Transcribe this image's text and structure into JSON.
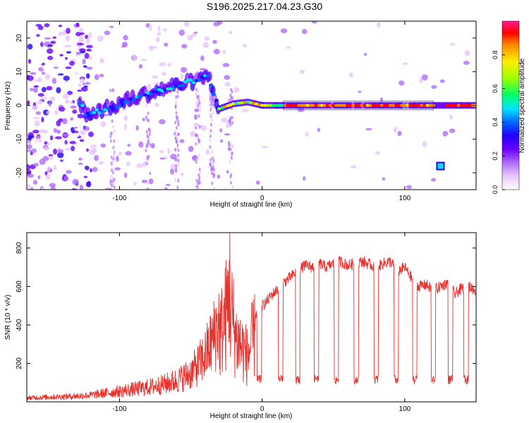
{
  "title": "S196.2025.217.04.23.G30",
  "colors": {
    "snr_line": "#e8302c",
    "axis": "#000000",
    "colormap": [
      "#ffffff",
      "#e7c6ff",
      "#b06bff",
      "#6a00ff",
      "#2200ff",
      "#0066ff",
      "#00e5ff",
      "#00ff6a",
      "#9cff00",
      "#ffee00",
      "#ff8800",
      "#ff0000",
      "#ff1a8c"
    ]
  },
  "chart_data": [
    {
      "type": "heatmap",
      "title": "S196.2025.217.04.23.G30",
      "xlabel": "Height of straight line (km)",
      "ylabel": "Frequency (Hz)",
      "xlim": [
        -165,
        150
      ],
      "ylim": [
        -25,
        25
      ],
      "x_ticks": [
        -100,
        0,
        100
      ],
      "y_ticks": [
        -20,
        -10,
        0,
        10,
        20
      ],
      "colorbar": {
        "label": "Normalized spectral amplitude",
        "range": [
          0,
          1
        ],
        "ticks": [
          0.0,
          0.2,
          0.4,
          0.6,
          0.8
        ]
      },
      "tone_track": [
        {
          "x": -125,
          "f": -2.5
        },
        {
          "x": -115,
          "f": -1.5
        },
        {
          "x": -105,
          "f": -0.5
        },
        {
          "x": -95,
          "f": 1.5
        },
        {
          "x": -85,
          "f": 3
        },
        {
          "x": -75,
          "f": 4
        },
        {
          "x": -65,
          "f": 5.5
        },
        {
          "x": -55,
          "f": 6.5
        },
        {
          "x": -45,
          "f": 7.5
        },
        {
          "x": -38,
          "f": 9
        },
        {
          "x": -30,
          "f": -1
        },
        {
          "x": -20,
          "f": 0.5
        },
        {
          "x": -10,
          "f": 1
        },
        {
          "x": 0,
          "f": 0
        },
        {
          "x": 150,
          "f": 0
        }
      ],
      "side_tone": {
        "x": 125,
        "f": -18
      }
    },
    {
      "type": "line",
      "xlabel": "Height of straight line (km)",
      "ylabel": "SNR (10 * v/v)",
      "xlim": [
        -165,
        150
      ],
      "ylim": [
        0,
        880
      ],
      "x_ticks": [
        -100,
        0,
        100
      ],
      "y_ticks": [
        200,
        400,
        600,
        800
      ],
      "series": [
        {
          "values": {
            "x": [
              -165,
              -150,
              -135,
              -120,
              -110,
              -100,
              -90,
              -80,
              -70,
              -60,
              -50,
              -45,
              -40,
              -35,
              -30,
              -28,
              -26,
              -24,
              -23,
              -22,
              -20,
              -18,
              -15,
              -12,
              -10,
              -8,
              -5,
              -2,
              0,
              3,
              6,
              10,
              15,
              20,
              25,
              30,
              35,
              40,
              45,
              50,
              55,
              60,
              65,
              70,
              75,
              80,
              85,
              90,
              95,
              100,
              105,
              110,
              115,
              120,
              125,
              130,
              135,
              140,
              145,
              150
            ],
            "y": [
              20,
              25,
              28,
              35,
              45,
              55,
              65,
              75,
              90,
              110,
              150,
              190,
              240,
              320,
              420,
              500,
              560,
              640,
              860,
              600,
              520,
              420,
              380,
              330,
              300,
              380,
              450,
              480,
              500,
              520,
              550,
              580,
              620,
              650,
              680,
              710,
              700,
              720,
              700,
              720,
              730,
              710,
              720,
              730,
              715,
              700,
              720,
              730,
              680,
              700,
              640,
              600,
              610,
              580,
              600,
              620,
              560,
              590,
              600,
              580
            ]
          }
        }
      ],
      "dropouts_x": [
        -2,
        13,
        25,
        38,
        52,
        66,
        80,
        94,
        107,
        120,
        132,
        143
      ]
    }
  ]
}
